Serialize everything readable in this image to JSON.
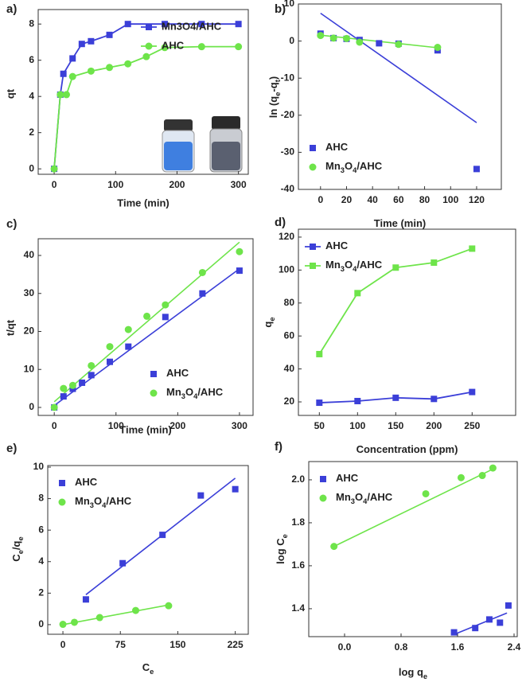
{
  "chart_data": [
    {
      "type": "line",
      "panel_label": "a)",
      "y_label": "qt",
      "x_label": "Time (min)",
      "xlim": [
        -26,
        316
      ],
      "xticks": [
        0,
        100,
        200,
        300
      ],
      "ylim": [
        -0.3,
        8.8
      ],
      "yticks": [
        0,
        2,
        4,
        6,
        8
      ],
      "legend": "upper right",
      "series": [
        {
          "name": "Mn3O4/AHC",
          "color": "#3b3fd8",
          "marker": "square",
          "line": true,
          "x": [
            0,
            10,
            15,
            30,
            45,
            60,
            90,
            120,
            180,
            240,
            300
          ],
          "values": [
            0,
            4.1,
            5.25,
            6.1,
            6.9,
            7.05,
            7.4,
            8,
            8,
            8,
            8
          ]
        },
        {
          "name": "AHC",
          "color": "#6ee44a",
          "marker": "circle",
          "line": true,
          "x": [
            0,
            10,
            20,
            30,
            60,
            90,
            120,
            150,
            180,
            240,
            300
          ],
          "values": [
            0,
            4.1,
            4.1,
            5.1,
            5.4,
            5.6,
            5.8,
            6.2,
            6.7,
            6.75,
            6.75
          ]
        }
      ]
    },
    {
      "type": "scatter",
      "panel_label": "b)",
      "y_label": "ln (qe-qt)",
      "x_label": "Time (min)",
      "xlim": [
        -17,
        139
      ],
      "xticks": [
        0,
        20,
        40,
        60,
        80,
        100,
        120
      ],
      "ylim": [
        -40,
        10
      ],
      "yticks": [
        -40,
        -30,
        -20,
        -10,
        0,
        10
      ],
      "legend": "lower left",
      "series": [
        {
          "name": "AHC",
          "color": "#3b3fd8",
          "marker": "square",
          "line": false,
          "x": [
            0,
            10,
            20,
            30,
            45,
            60,
            90,
            120
          ],
          "values": [
            2,
            0.8,
            0.6,
            0.3,
            -0.6,
            -0.7,
            -2.5,
            -34.5
          ]
        },
        {
          "name": "Mn3O4/AHC",
          "color": "#6ee44a",
          "marker": "circle",
          "line": false,
          "x": [
            0,
            10,
            20,
            30,
            60,
            90
          ],
          "values": [
            1.5,
            0.8,
            0.7,
            -0.3,
            -0.9,
            -1.7
          ]
        }
      ],
      "fits": [
        {
          "color": "#3b3fd8",
          "x": [
            0,
            120
          ],
          "values": [
            7.5,
            -22
          ]
        },
        {
          "color": "#6ee44a",
          "x": [
            0,
            90
          ],
          "values": [
            1.6,
            -1.8
          ]
        }
      ]
    },
    {
      "type": "scatter",
      "panel_label": "c)",
      "y_label": "t/qt",
      "x_label": "Time (min)",
      "xlim": [
        -26,
        322
      ],
      "xticks": [
        0,
        100,
        200,
        300
      ],
      "ylim": [
        -2.1,
        44.4
      ],
      "yticks": [
        0,
        10,
        20,
        30,
        40
      ],
      "legend": "lower right",
      "series": [
        {
          "name": "AHC",
          "color": "#3b3fd8",
          "marker": "square",
          "line": false,
          "x": [
            0,
            15,
            30,
            45,
            60,
            90,
            120,
            180,
            240,
            300
          ],
          "values": [
            0,
            2.9,
            4.9,
            6.5,
            8.5,
            12,
            16,
            23.8,
            30,
            36
          ]
        },
        {
          "name": "Mn3O4/AHC",
          "color": "#6ee44a",
          "marker": "circle",
          "line": false,
          "x": [
            0,
            15,
            30,
            60,
            90,
            120,
            150,
            180,
            240,
            300
          ],
          "values": [
            0,
            5,
            5.8,
            11,
            16,
            20.5,
            24,
            27,
            35.5,
            41
          ]
        }
      ],
      "fits": [
        {
          "color": "#3b3fd8",
          "x": [
            0,
            300
          ],
          "values": [
            0.5,
            36.5
          ]
        },
        {
          "color": "#6ee44a",
          "x": [
            0,
            300
          ],
          "values": [
            1.5,
            43.5
          ]
        }
      ]
    },
    {
      "type": "line",
      "panel_label": "d)",
      "y_label": "qe",
      "x_label": "Concentration (ppm)",
      "xlim": [
        22.6,
        307
      ],
      "xticks": [
        50,
        100,
        150,
        200,
        250
      ],
      "ylim": [
        11.8,
        124.8
      ],
      "yticks": [
        20,
        40,
        60,
        80,
        100,
        120
      ],
      "legend": "upper left",
      "series": [
        {
          "name": "AHC",
          "color": "#3b3fd8",
          "marker": "square",
          "line": true,
          "x": [
            50,
            100,
            150,
            200,
            250
          ],
          "values": [
            19.5,
            20.5,
            22.5,
            21.8,
            26
          ]
        },
        {
          "name": "Mn3O4/AHC",
          "color": "#6ee44a",
          "marker": "square",
          "line": true,
          "x": [
            50,
            100,
            150,
            200,
            250
          ],
          "values": [
            49,
            86,
            101.5,
            104.5,
            113
          ]
        }
      ]
    },
    {
      "type": "scatter",
      "panel_label": "e)",
      "y_label": "Ce/qe",
      "x_label": "Ce",
      "xlim": [
        -19.8,
        242
      ],
      "xticks": [
        0,
        75,
        150,
        225
      ],
      "ylim": [
        -0.61,
        10.1
      ],
      "yticks": [
        0,
        2,
        4,
        6,
        8,
        10
      ],
      "legend": "upper left",
      "series": [
        {
          "name": "AHC",
          "color": "#3b3fd8",
          "marker": "square",
          "line": false,
          "x": [
            30,
            78,
            130,
            180,
            225
          ],
          "values": [
            1.6,
            3.9,
            5.7,
            8.2,
            8.6
          ]
        },
        {
          "name": "Mn3O4/AHC",
          "color": "#6ee44a",
          "marker": "circle",
          "line": false,
          "x": [
            0,
            15,
            48,
            95,
            138
          ],
          "values": [
            0.02,
            0.15,
            0.45,
            0.9,
            1.2
          ]
        }
      ],
      "fits": [
        {
          "color": "#3b3fd8",
          "x": [
            30,
            225
          ],
          "values": [
            1.9,
            9.3
          ]
        },
        {
          "color": "#6ee44a",
          "x": [
            0,
            138
          ],
          "values": [
            0,
            1.25
          ]
        }
      ]
    },
    {
      "type": "scatter",
      "panel_label": "f)",
      "y_label": "log Ce",
      "x_label": "log qe",
      "xlim": [
        -0.507,
        2.445
      ],
      "xticks": [
        {
          "value": 0,
          "label": "0.0"
        },
        0.8,
        1.6,
        2.4
      ],
      "ylim": [
        1.27,
        2.085
      ],
      "yticks": [
        1.4,
        1.6,
        1.8,
        {
          "value": 2,
          "label": "2.0"
        }
      ],
      "legend": "upper left",
      "series": [
        {
          "name": "AHC",
          "color": "#3b3fd8",
          "marker": "square",
          "line": false,
          "x": [
            1.55,
            1.85,
            2.05,
            2.2,
            2.32
          ],
          "values": [
            1.29,
            1.31,
            1.35,
            1.335,
            1.415
          ]
        },
        {
          "name": "Mn3O4/AHC",
          "color": "#6ee44a",
          "marker": "circle",
          "line": false,
          "x": [
            -0.15,
            1.15,
            1.65,
            1.95,
            2.1
          ],
          "values": [
            1.69,
            1.935,
            2.01,
            2.02,
            2.055
          ]
        }
      ],
      "fits": [
        {
          "color": "#3b3fd8",
          "x": [
            1.55,
            2.3
          ],
          "values": [
            1.28,
            1.38
          ]
        },
        {
          "color": "#6ee44a",
          "x": [
            -0.15,
            2.1
          ],
          "values": [
            1.69,
            2.05
          ]
        }
      ]
    }
  ]
}
